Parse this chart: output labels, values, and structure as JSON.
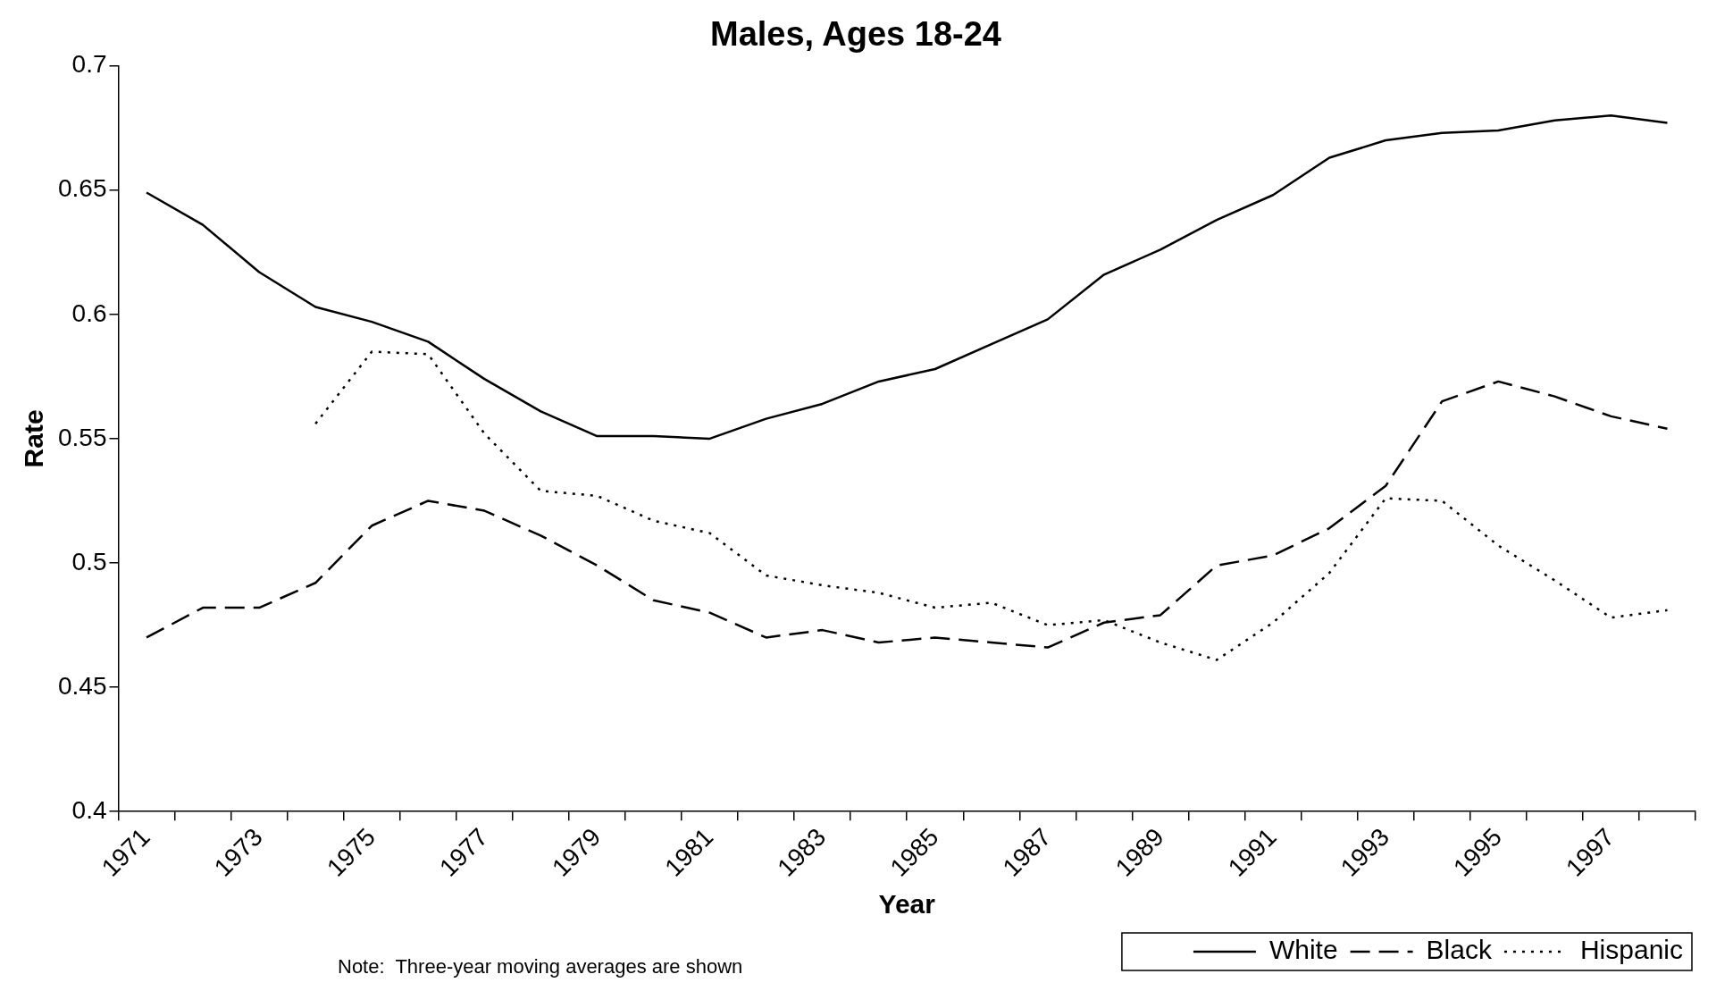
{
  "chart_data": {
    "type": "line",
    "title": "Males, Ages 18-24",
    "xlabel": "Year",
    "ylabel": "Rate",
    "categories": [
      "1971",
      null,
      "1973",
      null,
      "1975",
      null,
      "1977",
      null,
      "1979",
      null,
      "1981",
      null,
      "1983",
      null,
      "1985",
      null,
      "1987",
      null,
      "1989",
      null,
      "1991",
      null,
      "1993",
      null,
      "1995",
      null,
      "1997",
      null
    ],
    "series": [
      {
        "name": "White",
        "color": "#000000",
        "line_style": "solid",
        "values": [
          0.649,
          0.636,
          0.617,
          0.603,
          0.597,
          0.589,
          0.574,
          0.561,
          0.551,
          0.551,
          0.55,
          0.558,
          0.564,
          0.573,
          0.578,
          0.588,
          0.598,
          0.616,
          0.626,
          0.638,
          0.648,
          0.663,
          0.67,
          0.673,
          0.674,
          0.678,
          0.68,
          0.677
        ]
      },
      {
        "name": "Black",
        "color": "#000000",
        "line_style": "dashed",
        "values": [
          0.47,
          0.482,
          0.482,
          0.492,
          0.515,
          0.525,
          0.521,
          0.511,
          0.499,
          0.485,
          0.48,
          0.47,
          0.473,
          0.468,
          0.47,
          0.468,
          0.466,
          0.476,
          0.479,
          0.499,
          0.503,
          0.514,
          0.531,
          0.565,
          0.573,
          0.567,
          0.559,
          0.554
        ]
      },
      {
        "name": "Hispanic",
        "color": "#000000",
        "line_style": "dotted",
        "values": [
          null,
          null,
          null,
          0.556,
          0.585,
          0.584,
          0.552,
          0.529,
          0.527,
          0.517,
          0.512,
          0.495,
          0.491,
          0.488,
          0.482,
          0.484,
          0.475,
          0.477,
          0.468,
          0.461,
          0.476,
          0.496,
          0.526,
          0.525,
          0.507,
          0.493,
          0.478,
          0.481
        ]
      }
    ],
    "ylim": [
      0.4,
      0.7
    ],
    "yticks": [
      0.4,
      0.45,
      0.5,
      0.55,
      0.6,
      0.65,
      0.7
    ],
    "grid": false,
    "legend": "bottom right",
    "marker": "none",
    "annotations": [
      "Note:  Three-year moving averages are shown"
    ]
  }
}
